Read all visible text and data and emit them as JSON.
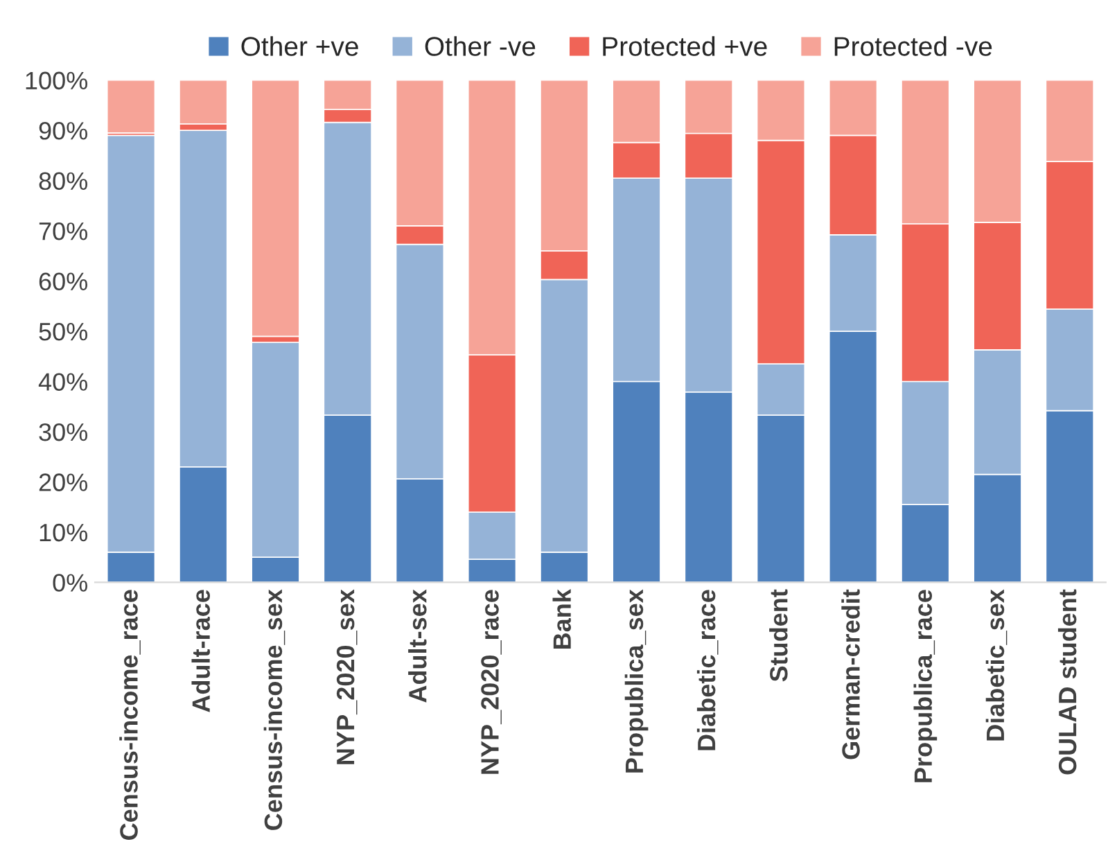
{
  "chart_data": {
    "type": "bar",
    "stacked": true,
    "categories": [
      "Census-income_race",
      "Adult-race",
      "Census-income_sex",
      "NYP_2020_sex",
      "Adult-sex",
      "NYP_2020_race",
      "Bank",
      "Propublica_sex",
      "Diabetic_race",
      "Student",
      "German-credit",
      "Propublica_race",
      "Diabetic_sex",
      "OULAD student"
    ],
    "series": [
      {
        "name": "Other +ve",
        "color": "#4f81bd",
        "values": [
          6,
          23,
          5,
          33.3,
          20.6,
          4.6,
          6,
          40,
          37.9,
          33.3,
          50,
          15.5,
          21.5,
          34.2
        ]
      },
      {
        "name": "Other -ve",
        "color": "#95b3d7",
        "values": [
          83,
          67,
          42.8,
          58.3,
          46.7,
          9.4,
          54.3,
          40.5,
          42.6,
          10.2,
          19.2,
          24.5,
          24.8,
          20.2
        ]
      },
      {
        "name": "Protected +ve",
        "color": "#f06457",
        "values": [
          0.5,
          1.3,
          1.2,
          2.6,
          3.7,
          31.3,
          5.7,
          7.1,
          8.9,
          44.5,
          19.8,
          31.4,
          25.4,
          29.4
        ]
      },
      {
        "name": "Protected -ve",
        "color": "#f6a397",
        "values": [
          10.5,
          8.7,
          51,
          5.8,
          29,
          54.7,
          34,
          12.4,
          10.6,
          12,
          11,
          28.6,
          28.3,
          16.2
        ]
      }
    ],
    "ylim": [
      0,
      100
    ],
    "yticks": [
      {
        "value": 0,
        "label": "0%"
      },
      {
        "value": 10,
        "label": "10%"
      },
      {
        "value": 20,
        "label": "20%"
      },
      {
        "value": 30,
        "label": "30%"
      },
      {
        "value": 40,
        "label": "40%"
      },
      {
        "value": 50,
        "label": "50%"
      },
      {
        "value": 60,
        "label": "60%"
      },
      {
        "value": 70,
        "label": "70%"
      },
      {
        "value": 80,
        "label": "80%"
      },
      {
        "value": 90,
        "label": "90%"
      },
      {
        "value": 100,
        "label": "100%"
      }
    ],
    "grid": false,
    "legend": "top"
  }
}
